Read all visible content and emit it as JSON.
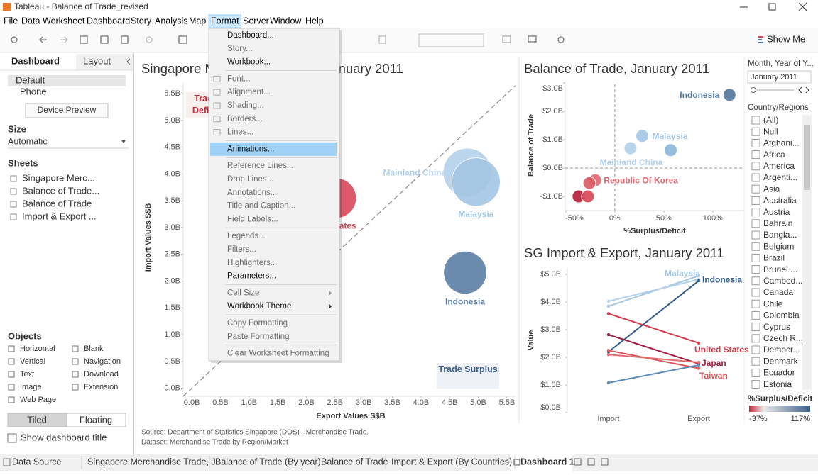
{
  "window": {
    "title": "Tableau - Balance of Trade_revised"
  },
  "menubar": {
    "items": [
      "File",
      "Data",
      "Worksheet",
      "Dashboard",
      "Story",
      "Analysis",
      "Map",
      "Format",
      "Server",
      "Window",
      "Help"
    ],
    "active": 7
  },
  "toolbar": {
    "show_me": "Show Me"
  },
  "format_menu": {
    "groups": [
      [
        {
          "label": "Dashboard...",
          "enabled": true
        },
        {
          "label": "Story...",
          "enabled": false
        },
        {
          "label": "Workbook...",
          "enabled": true
        }
      ],
      [
        {
          "label": "Font...",
          "enabled": false
        },
        {
          "label": "Alignment...",
          "enabled": false
        },
        {
          "label": "Shading...",
          "enabled": false
        },
        {
          "label": "Borders...",
          "enabled": false
        },
        {
          "label": "Lines...",
          "enabled": false
        }
      ],
      [
        {
          "label": "Animations...",
          "enabled": true,
          "highlighted": true
        }
      ],
      [
        {
          "label": "Reference Lines...",
          "enabled": false
        },
        {
          "label": "Drop Lines...",
          "enabled": false
        },
        {
          "label": "Annotations...",
          "enabled": false
        },
        {
          "label": "Title and Caption...",
          "enabled": false
        },
        {
          "label": "Field Labels...",
          "enabled": false
        }
      ],
      [
        {
          "label": "Legends...",
          "enabled": false
        },
        {
          "label": "Filters...",
          "enabled": false
        },
        {
          "label": "Highlighters...",
          "enabled": false
        },
        {
          "label": "Parameters...",
          "enabled": true
        }
      ],
      [
        {
          "label": "Cell Size",
          "enabled": false,
          "submenu": true
        },
        {
          "label": "Workbook Theme",
          "enabled": true,
          "submenu": true
        }
      ],
      [
        {
          "label": "Copy Formatting",
          "enabled": false
        },
        {
          "label": "Paste Formatting",
          "enabled": false
        }
      ],
      [
        {
          "label": "Clear Worksheet Formatting",
          "enabled": false
        }
      ]
    ]
  },
  "side_panel": {
    "tabs": [
      "Dashboard",
      "Layout"
    ],
    "devices": [
      "Default",
      "Phone"
    ],
    "device_preview": "Device Preview",
    "size_heading": "Size",
    "size_value": "Automatic",
    "sheets_heading": "Sheets",
    "sheets": [
      "Singapore Merc...",
      "Balance of Trade...",
      "Balance of Trade",
      "Import & Export ..."
    ],
    "objects_heading": "Objects",
    "objects": [
      "Horizontal",
      "Blank",
      "Vertical",
      "Navigation",
      "Text",
      "Download",
      "Image",
      "Extension",
      "Web Page"
    ],
    "layout_modes": [
      "Tiled",
      "Floating"
    ],
    "show_title": "Show dashboard title"
  },
  "dashboard": {
    "charts": [
      {
        "type": "bubble",
        "title": "Singapore Merchandise Trade, January 2011",
        "x_label": "Export Values S$B",
        "y_label": "Import Values S$B",
        "xlim": [
          -0.15,
          5.65
        ],
        "ylim": [
          -0.15,
          5.7
        ],
        "xticks": [
          {
            "value": 0,
            "label": "0.0B"
          },
          {
            "value": 0.5,
            "label": "0.5B"
          },
          {
            "value": 1,
            "label": "1.0B"
          },
          {
            "value": 1.5,
            "label": "1.5B"
          },
          {
            "value": 2,
            "label": "2.0B"
          },
          {
            "value": 2.5,
            "label": "2.5B"
          },
          {
            "value": 3,
            "label": "3.0B"
          },
          {
            "value": 3.5,
            "label": "3.5B"
          },
          {
            "value": 4,
            "label": "4.0B"
          },
          {
            "value": 4.5,
            "label": "4.5B"
          },
          {
            "value": 5,
            "label": "5.0B"
          },
          {
            "value": 5.5,
            "label": "5.5B"
          }
        ],
        "yticks": [
          {
            "value": 0,
            "label": "0.0B"
          },
          {
            "value": 0.5,
            "label": "0.5B"
          },
          {
            "value": 1,
            "label": "1.0B"
          },
          {
            "value": 1.5,
            "label": "1.5B"
          },
          {
            "value": 2,
            "label": "2.0B"
          },
          {
            "value": 2.5,
            "label": "2.5B"
          },
          {
            "value": 3,
            "label": "3.0B"
          },
          {
            "value": 3.5,
            "label": "3.5B"
          },
          {
            "value": 4,
            "label": "4.0B"
          },
          {
            "value": 4.5,
            "label": "4.5B"
          },
          {
            "value": 5,
            "label": "5.0B"
          },
          {
            "value": 5.5,
            "label": "5.5B"
          }
        ],
        "points": [
          {
            "name": "Mainland China",
            "x": 4.81,
            "y": 4.03,
            "size": 8.84,
            "color": "#b3d1ea"
          },
          {
            "name": "Malaysia",
            "x": 4.96,
            "y": 3.85,
            "size": 8.81,
            "color": "#a3c6e4"
          },
          {
            "name": "Indonesia",
            "x": 4.77,
            "y": 2.16,
            "size": 6.93,
            "color": "#5a7ea6"
          },
          {
            "name": "United States",
            "x": 2.52,
            "y": 3.55,
            "size": 6.07,
            "color": "#d9495a"
          }
        ],
        "annotations": [
          "Trade Deficit",
          "Trade Surplus"
        ]
      },
      {
        "type": "scatter",
        "title": "Balance of Trade, January 2011",
        "x_label": "%Surplus/Deficit",
        "y_label": "Balance of Trade",
        "xlim": [
          -55,
          132
        ],
        "ylim": [
          -1.5,
          3.05
        ],
        "xticks": [
          {
            "value": -50,
            "label": "-50%"
          },
          {
            "value": 0,
            "label": "0%"
          },
          {
            "value": 50,
            "label": "50%"
          },
          {
            "value": 100,
            "label": "100%"
          }
        ],
        "yticks": [
          {
            "value": 3,
            "label": "$3.0B"
          },
          {
            "value": 2,
            "label": "$2.0B"
          },
          {
            "value": 1,
            "label": "$1.0B"
          },
          {
            "value": 0,
            "label": "$0.0B"
          },
          {
            "value": -1,
            "label": "-$1.0B"
          }
        ],
        "ref_lines": {
          "x": 0,
          "y": 0
        },
        "points": [
          {
            "name": "Indonesia",
            "x": 117,
            "y": 2.58,
            "color": "#56799f"
          },
          {
            "name": "Malaysia",
            "x": 28,
            "y": 1.13,
            "color": "#a3c6e4"
          },
          {
            "name": "Mainland China",
            "x": 16,
            "y": 0.7,
            "color": "#b3d1ea"
          },
          {
            "name": null,
            "x": 57,
            "y": 0.63,
            "color": "#8fb6da"
          },
          {
            "name": "Republic Of Korea",
            "x": -20,
            "y": -0.43,
            "color": "#e06a73"
          },
          {
            "name": null,
            "x": -26,
            "y": -0.53,
            "color": "#dd5d67"
          },
          {
            "name": null,
            "x": -37,
            "y": -1.0,
            "color": "#b8203a"
          },
          {
            "name": null,
            "x": -27.5,
            "y": -1.0,
            "color": "#d9495a"
          }
        ]
      },
      {
        "type": "slope",
        "title": "SG Import & Export, January 2011",
        "y_label": "Value",
        "categories": [
          "Import",
          "Export"
        ],
        "ylim": [
          0,
          5.26
        ],
        "yticks": [
          {
            "value": 5,
            "label": "$5.0B"
          },
          {
            "value": 4,
            "label": "$4.0B"
          },
          {
            "value": 3,
            "label": "$3.0B"
          },
          {
            "value": 2,
            "label": "$2.0B"
          },
          {
            "value": 1,
            "label": "$1.0B"
          },
          {
            "value": 0,
            "label": "$0.0B"
          }
        ],
        "series": [
          {
            "name": "Malaysia",
            "color": "#a3c6e4",
            "values": [
              3.85,
              4.95
            ]
          },
          {
            "name": null,
            "color": "#b3d1ea",
            "values": [
              4.03,
              4.82
            ]
          },
          {
            "name": "Indonesia",
            "color": "#2f5d8c",
            "values": [
              2.2,
              4.77
            ]
          },
          {
            "name": "United States",
            "color": "#d43a4a",
            "values": [
              3.58,
              2.52
            ]
          },
          {
            "name": "Japan",
            "color": "#a01c40",
            "values": [
              2.82,
              1.77
            ]
          },
          {
            "name": "Taiwan",
            "color": "#e0555c",
            "values": [
              2.25,
              1.6
            ]
          },
          {
            "name": null,
            "color": "#e56a6a",
            "values": [
              2.1,
              1.82
            ]
          },
          {
            "name": null,
            "color": "#5b8bb8",
            "values": [
              1.08,
              1.72
            ]
          }
        ]
      }
    ]
  },
  "source": [
    "Source: Department of Statistics Singapore (DOS) - Merchandise Trade.",
    "Dataset: Merchandise Trade by Region/Market"
  ],
  "filters": {
    "month_heading": "Month, Year of Y...",
    "month_value": "January 2011",
    "country_heading": "Country/Regions",
    "countries": [
      "(All)",
      "Null",
      "Afghani...",
      "Africa",
      "America",
      "Argenti...",
      "Asia",
      "Australia",
      "Austria",
      "Bahrain",
      "Bangla...",
      "Belgium",
      "Brazil",
      "Brunei ...",
      "Cambod...",
      "Canada",
      "Chile",
      "Colombia",
      "Cyprus",
      "Czech R...",
      "Democr...",
      "Denmark",
      "Ecuador",
      "Estonia"
    ],
    "color_legend": {
      "title": "%Surplus/Deficit",
      "range": [
        {
          "value": -37,
          "label": "-37%"
        },
        {
          "value": 117,
          "label": "117%"
        }
      ],
      "colors": [
        "#c0283b",
        "#e9e9e9",
        "#3d5f8a"
      ]
    }
  },
  "bottom_tabs": {
    "items": [
      "Data Source",
      "Singapore Merchandise Trade, J...",
      "Balance of Trade (By year)",
      "Balance of Trade",
      "Import & Export (By Countries)",
      "Dashboard 1"
    ],
    "active": 5
  }
}
